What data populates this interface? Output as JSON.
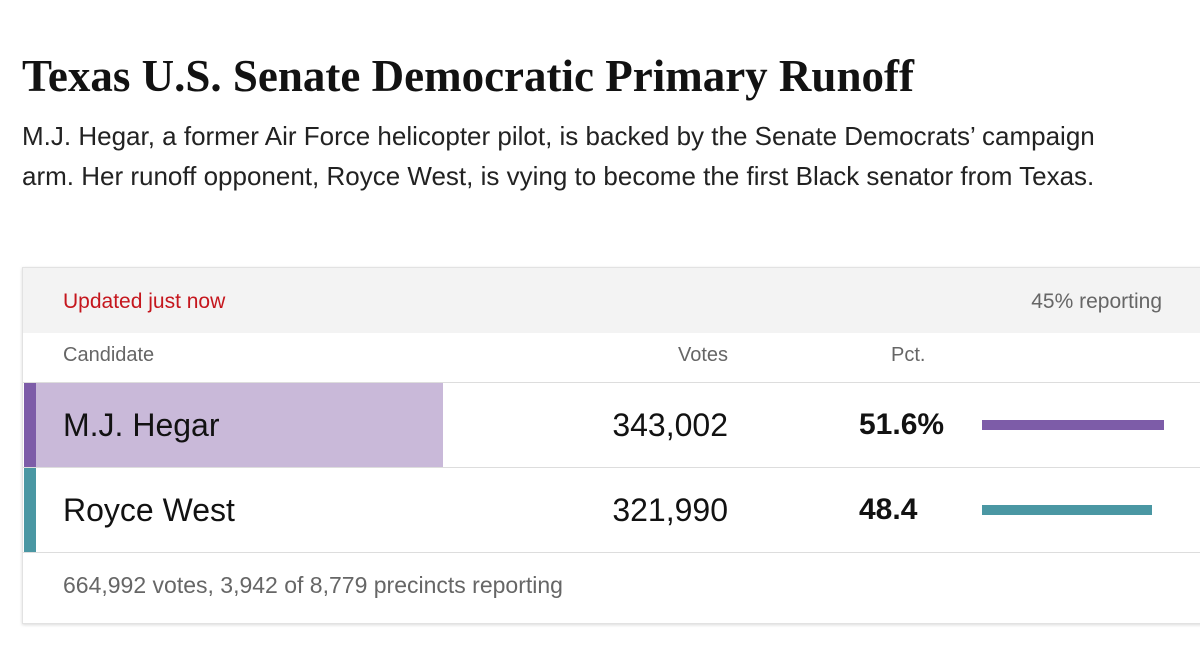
{
  "header": {
    "title": "Texas U.S. Senate Democratic Primary Runoff",
    "subtitle": "M.J. Hegar, a former Air Force helicopter pilot, is backed by the Senate Democrats’ campaign arm. Her runoff opponent, Royce West, is vying to become the first Black senator from Texas."
  },
  "table": {
    "updated": "Updated just now",
    "reporting": "45% reporting",
    "columns": [
      "Candidate",
      "Votes",
      "Pct."
    ],
    "rows": [
      {
        "name": "M.J. Hegar",
        "votes": "343,002",
        "pct": 51.6,
        "pct_label": "51.6%",
        "color": "#7d5ca8",
        "highlight_color": "#c9b9d9"
      },
      {
        "name": "Royce West",
        "votes": "321,990",
        "pct": 48.4,
        "color": "#4a97a3"
      }
    ],
    "footer": "664,992 votes, 3,942 of 8,779 precincts reporting"
  }
}
